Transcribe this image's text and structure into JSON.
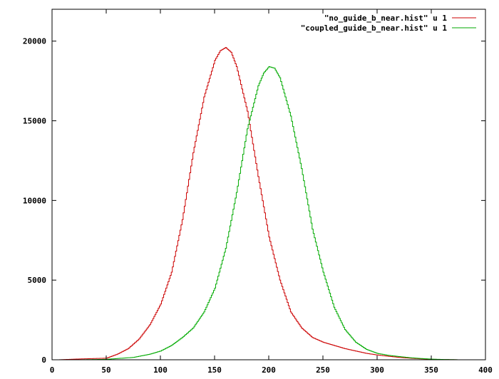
{
  "chart_data": {
    "type": "line",
    "title": "",
    "xlabel": "",
    "ylabel": "",
    "xlim": [
      0,
      400
    ],
    "ylim": [
      0,
      22000
    ],
    "x_ticks": [
      0,
      50,
      100,
      150,
      200,
      250,
      300,
      350,
      400
    ],
    "y_ticks": [
      0,
      5000,
      10000,
      15000,
      20000
    ],
    "x_tick_labels": [
      "0",
      "50",
      "100",
      "150",
      "200",
      "250",
      "300",
      "350",
      "400"
    ],
    "y_tick_labels": [
      "0",
      "5000",
      "10000",
      "15000",
      "20000"
    ],
    "grid": false,
    "legend_position": "top-right",
    "series": [
      {
        "name": "\"no_guide_b_near.hist\" u 1",
        "color": "#cc0000",
        "x": [
          5,
          25,
          50,
          60,
          70,
          80,
          90,
          100,
          110,
          120,
          130,
          140,
          150,
          155,
          160,
          165,
          170,
          180,
          190,
          200,
          210,
          220,
          230,
          240,
          250,
          260,
          270,
          280,
          290,
          300,
          310,
          320,
          330,
          340,
          350,
          360,
          375
        ],
        "y": [
          0,
          50,
          100,
          350,
          700,
          1300,
          2200,
          3500,
          5500,
          8800,
          13000,
          16500,
          18800,
          19400,
          19600,
          19300,
          18400,
          15600,
          11500,
          7700,
          5000,
          3000,
          2000,
          1400,
          1100,
          900,
          700,
          550,
          400,
          300,
          220,
          150,
          100,
          60,
          30,
          15,
          0
        ]
      },
      {
        "name": "\"coupled_guide_b_near.hist\" u 1",
        "color": "#00aa00",
        "x": [
          25,
          50,
          75,
          90,
          100,
          110,
          120,
          130,
          140,
          150,
          160,
          170,
          180,
          190,
          195,
          200,
          205,
          210,
          220,
          230,
          240,
          250,
          260,
          270,
          280,
          290,
          300,
          310,
          320,
          330,
          340,
          350,
          360,
          370,
          375
        ],
        "y": [
          0,
          30,
          150,
          350,
          550,
          900,
          1400,
          2000,
          3000,
          4500,
          7000,
          10500,
          14500,
          17200,
          18000,
          18400,
          18300,
          17700,
          15300,
          12000,
          8200,
          5500,
          3300,
          1900,
          1100,
          650,
          400,
          280,
          200,
          130,
          80,
          40,
          20,
          10,
          0
        ]
      }
    ]
  }
}
